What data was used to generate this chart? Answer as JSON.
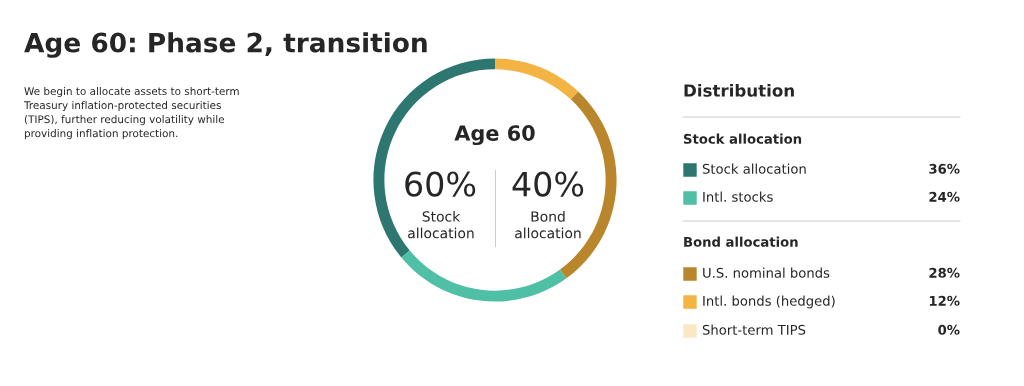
{
  "chart_data": {
    "type": "donut",
    "title": "Age 60: Phase 2, transition",
    "subtitle": "We begin to allocate assets to short-term\nTreasury inflation-protected securities\n(TIPS), further reducing volatility while\nproviding inflation protection.",
    "legend_title": "Distribution",
    "categories": [
      "Stock allocation",
      "Intl. stocks",
      "U.S. nominal bonds",
      "Intl. bonds (hedged)",
      "Short-term TIPS"
    ],
    "values": [
      36,
      24,
      28,
      12,
      0
    ],
    "colors": [
      "#2e7770",
      "#4fbfa5",
      "#b9862c",
      "#f3b443",
      "#fbe6c6"
    ],
    "value_labels": [
      "36%",
      "24%",
      "28%",
      "12%",
      "0%"
    ],
    "legend": "right",
    "annotations": [
      "Age 60",
      "60%",
      "Stock\nallocation",
      "40%",
      "Bond\nallocation",
      "Stock allocation",
      "Bond allocation"
    ]
  }
}
